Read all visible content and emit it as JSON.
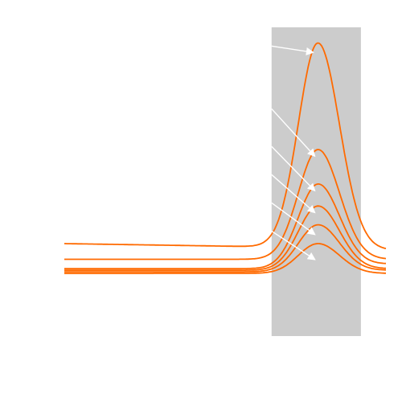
{
  "chart_data": {
    "type": "line",
    "title": "",
    "xlabel": "",
    "ylabel": "",
    "grid": false,
    "legend": "none",
    "line_color": "#ff6a00",
    "band_color": "#cccccc",
    "arrow_color": "#ffffff",
    "highlight_band": {
      "x_start": 5.8,
      "x_end": 8.3
    },
    "xlim": [
      0,
      9
    ],
    "ylim": [
      0,
      10
    ],
    "series": [
      {
        "baseline_start": 3.0,
        "baseline_end": 2.9,
        "peak_x": 7.1,
        "peak_y": 9.4,
        "right_end": 2.8
      },
      {
        "baseline_start": 2.5,
        "baseline_end": 2.5,
        "peak_x": 7.1,
        "peak_y": 6.0,
        "right_end": 2.5
      },
      {
        "baseline_start": 2.2,
        "baseline_end": 2.2,
        "peak_x": 7.1,
        "peak_y": 4.9,
        "right_end": 2.35
      },
      {
        "baseline_start": 2.15,
        "baseline_end": 2.15,
        "peak_x": 7.1,
        "peak_y": 4.2,
        "right_end": 2.2
      },
      {
        "baseline_start": 2.1,
        "baseline_end": 2.1,
        "peak_x": 7.1,
        "peak_y": 3.6,
        "right_end": 2.15
      },
      {
        "baseline_start": 2.05,
        "baseline_end": 2.05,
        "peak_x": 7.1,
        "peak_y": 3.0,
        "right_end": 2.05
      }
    ],
    "arrows": [
      {
        "from": [
          5.8,
          9.3
        ],
        "to": [
          6.95,
          9.1
        ]
      },
      {
        "from": [
          5.8,
          7.3
        ],
        "to": [
          7.0,
          5.8
        ]
      },
      {
        "from": [
          5.8,
          6.1
        ],
        "to": [
          7.0,
          4.7
        ]
      },
      {
        "from": [
          5.8,
          5.2
        ],
        "to": [
          7.0,
          4.0
        ]
      },
      {
        "from": [
          5.8,
          4.3
        ],
        "to": [
          7.0,
          3.3
        ]
      },
      {
        "from": [
          5.8,
          3.4
        ],
        "to": [
          7.0,
          2.5
        ]
      }
    ]
  }
}
